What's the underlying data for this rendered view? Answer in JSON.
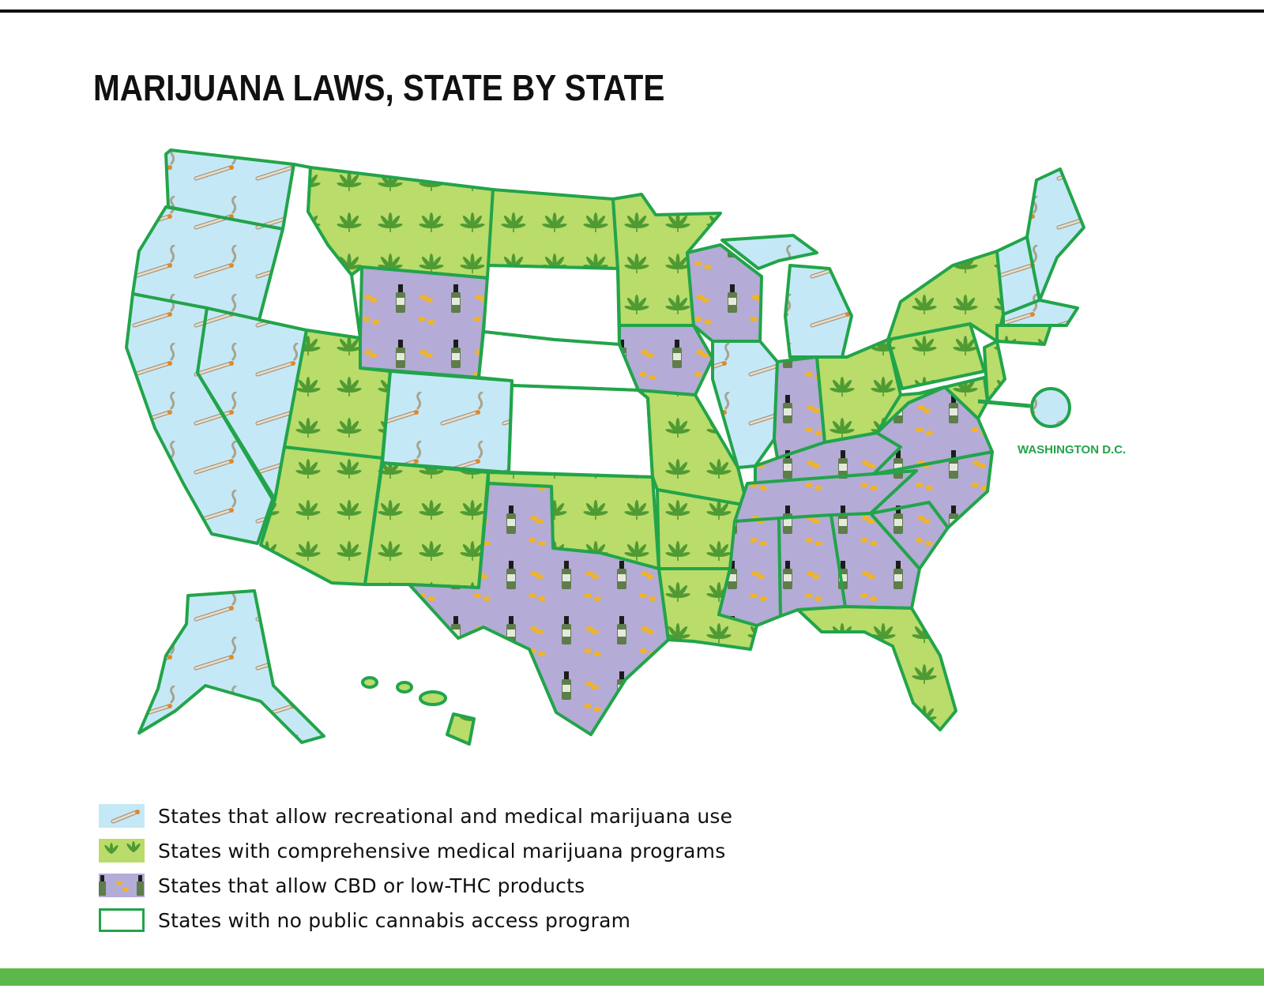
{
  "title": "MARIJUANA LAWS, STATE BY STATE",
  "dc_label": "WASHINGTON D.C.",
  "colors": {
    "recreational": "#c5e8f7",
    "medical": "#b9dc6a",
    "cbd": "#b4abd6",
    "none": "#ffffff",
    "border": "#22a44a",
    "bar": "#5cb848"
  },
  "legend": [
    {
      "key": "recreational",
      "label": "States that allow recreational and medical marijuana use",
      "icon": "joint-icon"
    },
    {
      "key": "medical",
      "label": "States with comprehensive medical marijuana programs",
      "icon": "cannabis-leaf-icon"
    },
    {
      "key": "cbd",
      "label": "States that allow CBD or low-THC products",
      "icon": "cbd-bottle-icon"
    },
    {
      "key": "none",
      "label": "States with no public cannabis access program",
      "icon": "empty-box-icon"
    }
  ]
}
